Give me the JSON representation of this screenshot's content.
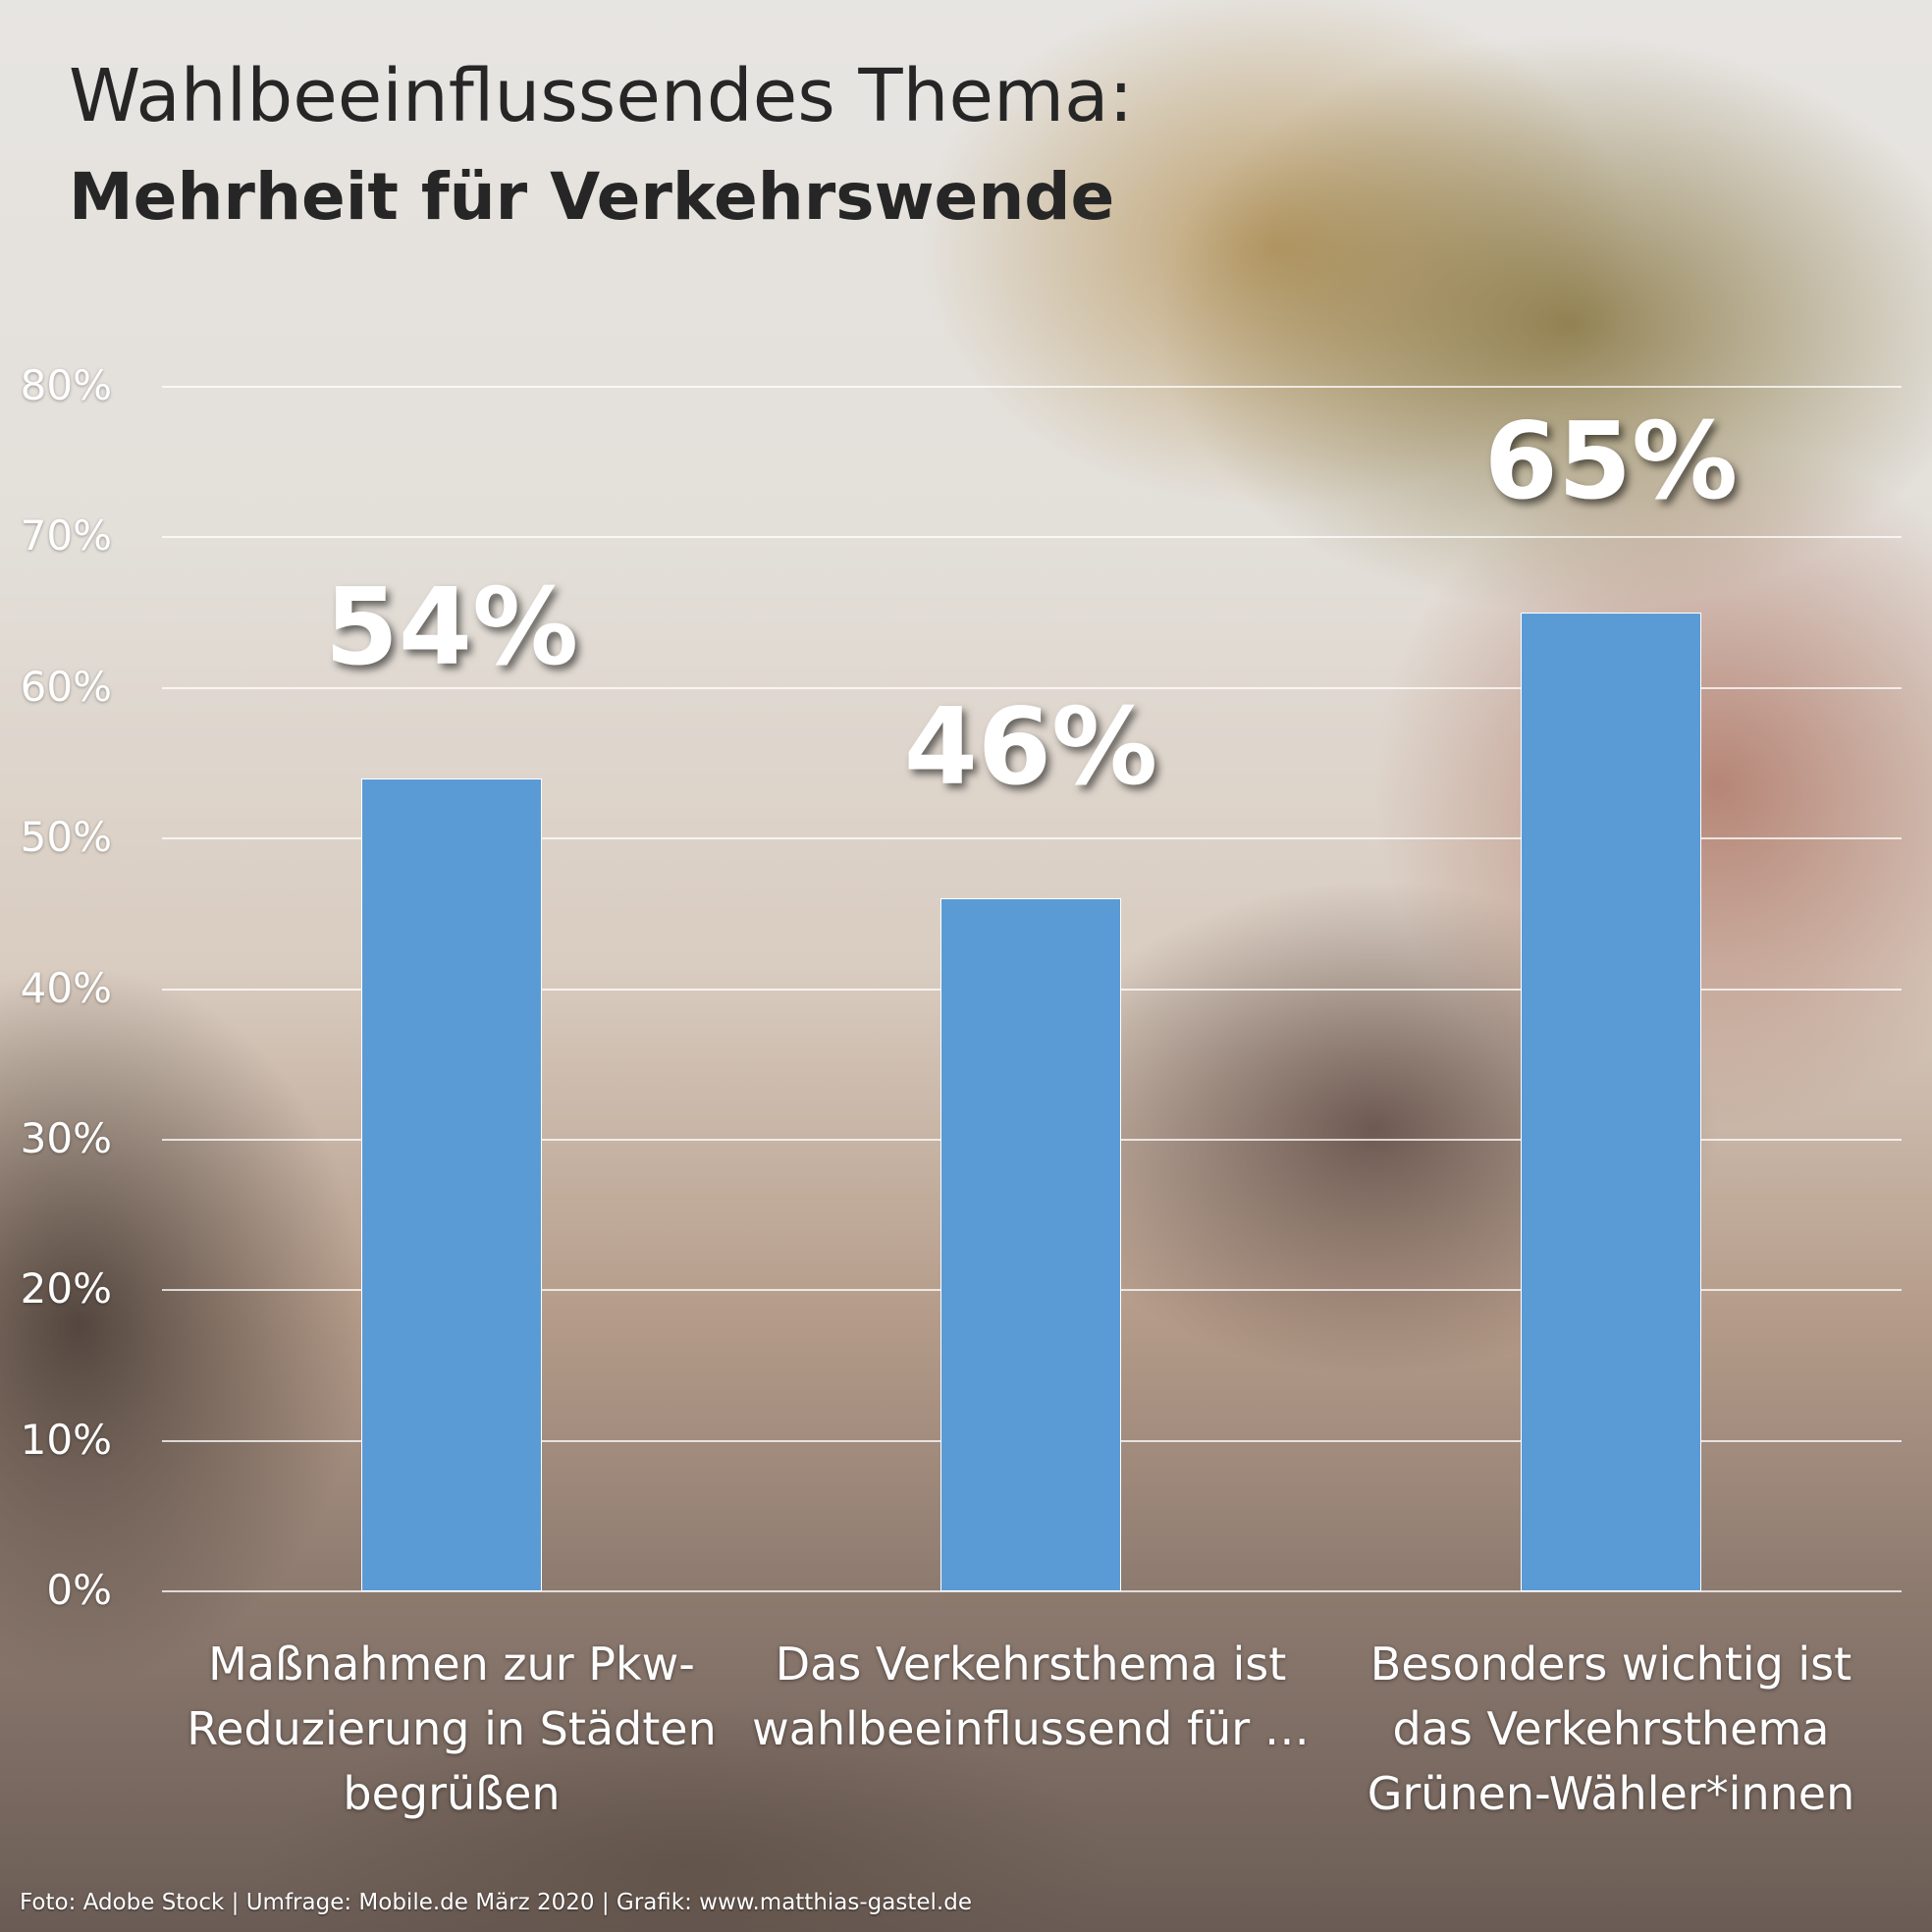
{
  "chart_data": {
    "type": "bar",
    "title": "Wahlbeeinflussendes Thema:",
    "subtitle": "Mehrheit für Verkehrswende",
    "categories": [
      "Maßnahmen zur Pkw-Reduzierung in Städten begrüßen",
      "Das Verkehrsthema ist wahlbeeinflussend für …",
      "Besonders wichtig ist das Verkehrsthema Grünen-Wähler*innen"
    ],
    "values": [
      54,
      46,
      65
    ],
    "data_labels": [
      "54%",
      "46%",
      "65%"
    ],
    "ylim": [
      0,
      80
    ],
    "yticks": [
      "0%",
      "10%",
      "20%",
      "30%",
      "40%",
      "50%",
      "60%",
      "70%",
      "80%"
    ],
    "grid": true,
    "bar_color": "#5b9bd5"
  },
  "footer": "Foto: Adobe Stock | Umfrage: Mobile.de März 2020 |  Grafik: www.matthias-gastel.de"
}
